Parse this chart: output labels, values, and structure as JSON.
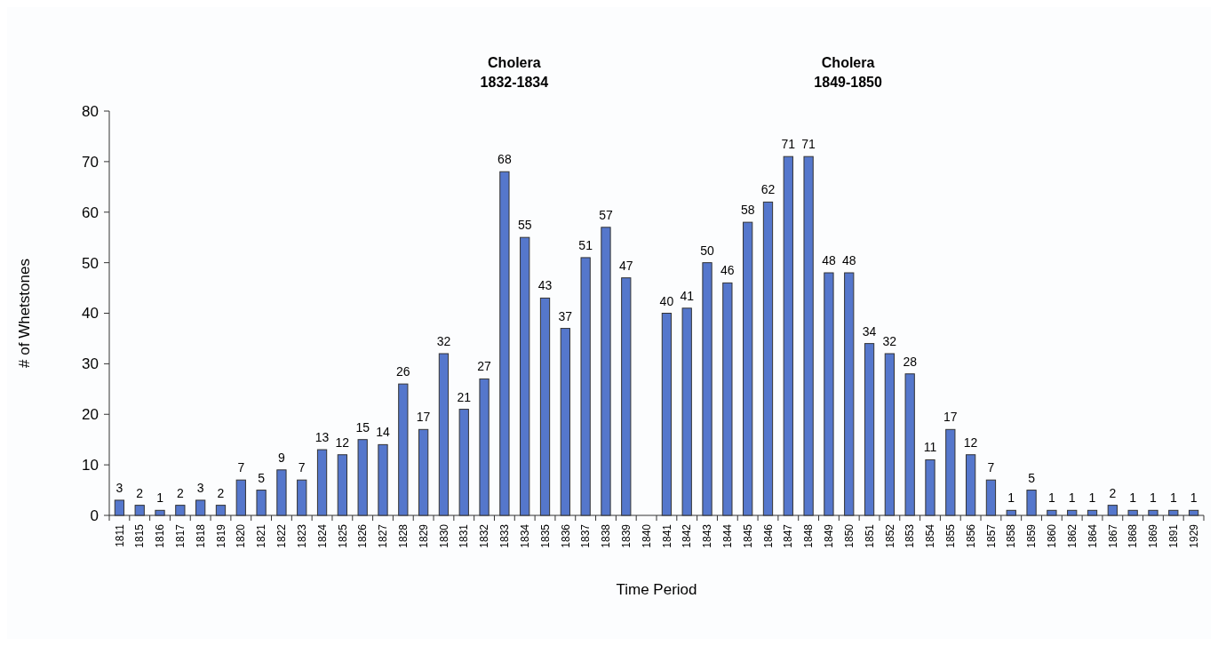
{
  "chart_data": {
    "type": "bar",
    "xlabel": "Time Period",
    "ylabel": "# of Whetstones",
    "categories": [
      "1811",
      "1815",
      "1816",
      "1817",
      "1818",
      "1819",
      "1820",
      "1821",
      "1822",
      "1823",
      "1824",
      "1825",
      "1826",
      "1827",
      "1828",
      "1829",
      "1830",
      "1831",
      "1832",
      "1833",
      "1834",
      "1835",
      "1836",
      "1837",
      "1838",
      "1839",
      "1840",
      "1841",
      "1842",
      "1843",
      "1844",
      "1845",
      "1846",
      "1847",
      "1848",
      "1849",
      "1850",
      "1851",
      "1852",
      "1853",
      "1854",
      "1855",
      "1856",
      "1857",
      "1858",
      "1859",
      "1860",
      "1862",
      "1864",
      "1867",
      "1868",
      "1869",
      "1891",
      "1929"
    ],
    "values": [
      3,
      2,
      1,
      2,
      3,
      2,
      7,
      5,
      9,
      7,
      13,
      12,
      15,
      14,
      26,
      17,
      32,
      21,
      27,
      68,
      55,
      43,
      37,
      51,
      57,
      47,
      null,
      40,
      41,
      50,
      46,
      58,
      62,
      71,
      71,
      48,
      48,
      34,
      32,
      28,
      11,
      17,
      12,
      7,
      1,
      5,
      1,
      1,
      1,
      2,
      1,
      1,
      1,
      1
    ],
    "color": "#5577cc",
    "data_labels": true,
    "ylim": [
      0,
      80
    ],
    "yticks": [
      0,
      10,
      20,
      30,
      40,
      50,
      60,
      70,
      80
    ],
    "grid": false,
    "annotations": [
      "Cholera\n1832-1834",
      "Cholera\n1849-1850"
    ]
  }
}
